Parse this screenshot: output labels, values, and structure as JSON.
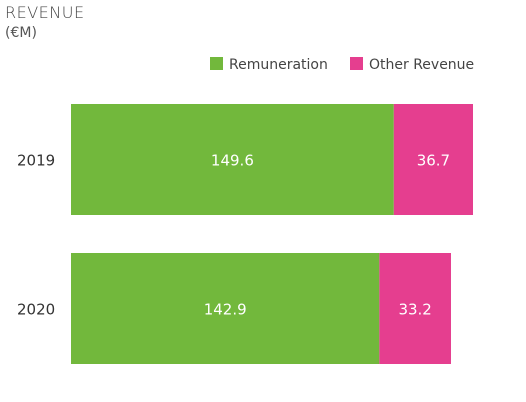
{
  "title": "REVENUE",
  "unit": "(€M)",
  "colors": {
    "remuneration": "#72b83c",
    "other_revenue": "#e53e8f"
  },
  "chart_data": {
    "type": "bar",
    "orientation": "horizontal",
    "stacked": true,
    "title": "REVENUE",
    "subtitle": "(€M)",
    "categories": [
      "2019",
      "2020"
    ],
    "series": [
      {
        "name": "Remuneration",
        "values": [
          149.6,
          142.9
        ]
      },
      {
        "name": "Other Revenue",
        "values": [
          36.7,
          33.2
        ]
      }
    ],
    "legend": "top-right",
    "grid": false,
    "xlim": [
      0,
      186.3
    ]
  }
}
